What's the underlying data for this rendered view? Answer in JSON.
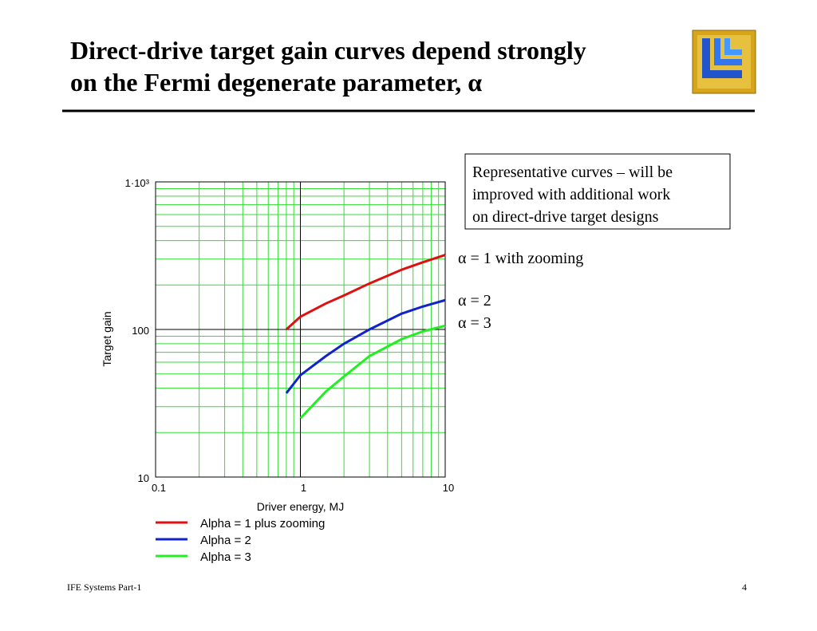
{
  "header": {
    "title_lines": [
      "Direct-drive target gain curves depend strongly",
      "on the Fermi degenerate parameter, α"
    ]
  },
  "chart_data": {
    "type": "line",
    "xlabel": "Driver energy, MJ",
    "ylabel": "Target gain",
    "log_x": true,
    "log_y": true,
    "grid": true,
    "xlim": [
      0.1,
      10
    ],
    "ylim": [
      10,
      1000
    ],
    "xticks": [
      0.1,
      1,
      10
    ],
    "yticks": [
      10,
      100,
      {
        "value": 1000,
        "label": "1·10³"
      }
    ],
    "x_minor_grid": [
      0.2,
      0.3,
      0.4,
      0.5,
      0.6,
      0.7,
      0.8,
      0.9,
      2,
      3,
      4,
      5,
      6,
      7,
      8,
      9
    ],
    "y_minor_grid": [
      20,
      30,
      40,
      50,
      60,
      70,
      80,
      90,
      200,
      300,
      400,
      500,
      600,
      700,
      800,
      900
    ],
    "grid_color": "#33dd33",
    "major_grid_color": "#000000",
    "legend": "bottom-left",
    "series": [
      {
        "name": "Alpha = 1 plus zooming",
        "color": "#dd1111",
        "x": [
          0.8,
          1,
          1.5,
          2,
          3,
          5,
          7,
          10
        ],
        "values": [
          100,
          122,
          150,
          170,
          205,
          254,
          285,
          320
        ]
      },
      {
        "name": "Alpha = 2",
        "color": "#1122cc",
        "x": [
          0.8,
          1,
          1.5,
          2,
          3,
          5,
          7,
          10
        ],
        "values": [
          37,
          49,
          66,
          80,
          100,
          128,
          143,
          158
        ]
      },
      {
        "name": "Alpha = 3",
        "color": "#22ee22",
        "x": [
          1,
          1.5,
          2,
          3,
          5,
          7,
          10
        ],
        "values": [
          25,
          38,
          48,
          66,
          86,
          97,
          106
        ]
      }
    ],
    "annotations": [
      "α = 1 with zooming",
      "α = 2",
      "α = 3"
    ],
    "note_lines": [
      "Representative curves – will be",
      "improved with additional work",
      "on direct-drive target designs"
    ]
  },
  "footer": {
    "left": "IFE Systems Part-1",
    "page": "4"
  }
}
